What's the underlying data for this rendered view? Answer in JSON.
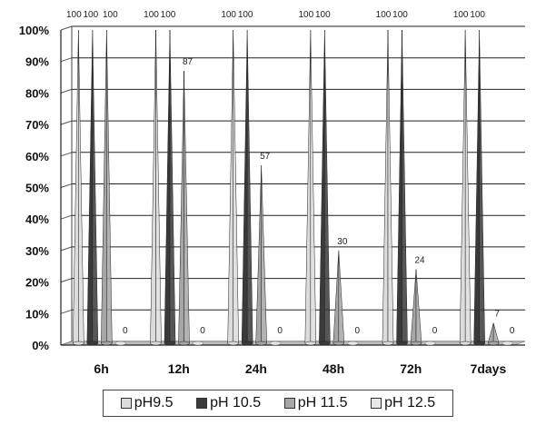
{
  "chart_data": {
    "type": "bar",
    "categories": [
      "6h",
      "12h",
      "24h",
      "48h",
      "72h",
      "7days"
    ],
    "series": [
      {
        "name": "pH9.5",
        "values": [
          100,
          100,
          100,
          100,
          100,
          100
        ],
        "color": "#dcdcdc"
      },
      {
        "name": "pH 10.5",
        "values": [
          100,
          100,
          100,
          100,
          100,
          100
        ],
        "color": "#3a3a3a"
      },
      {
        "name": "pH 11.5",
        "values": [
          100,
          87,
          57,
          30,
          24,
          7
        ],
        "color": "#a6a6a6"
      },
      {
        "name": "pH 12.5",
        "values": [
          0,
          0,
          0,
          0,
          0,
          0
        ],
        "color": "#e8e8e8"
      }
    ],
    "y_ticks": [
      "0%",
      "10%",
      "20%",
      "30%",
      "40%",
      "50%",
      "60%",
      "70%",
      "80%",
      "90%",
      "100%"
    ],
    "ylim": [
      0,
      100
    ],
    "grid": true,
    "legend_position": "bottom",
    "bar_shape": "cone",
    "data_labels": true,
    "title": "",
    "xlabel": "",
    "ylabel": ""
  }
}
